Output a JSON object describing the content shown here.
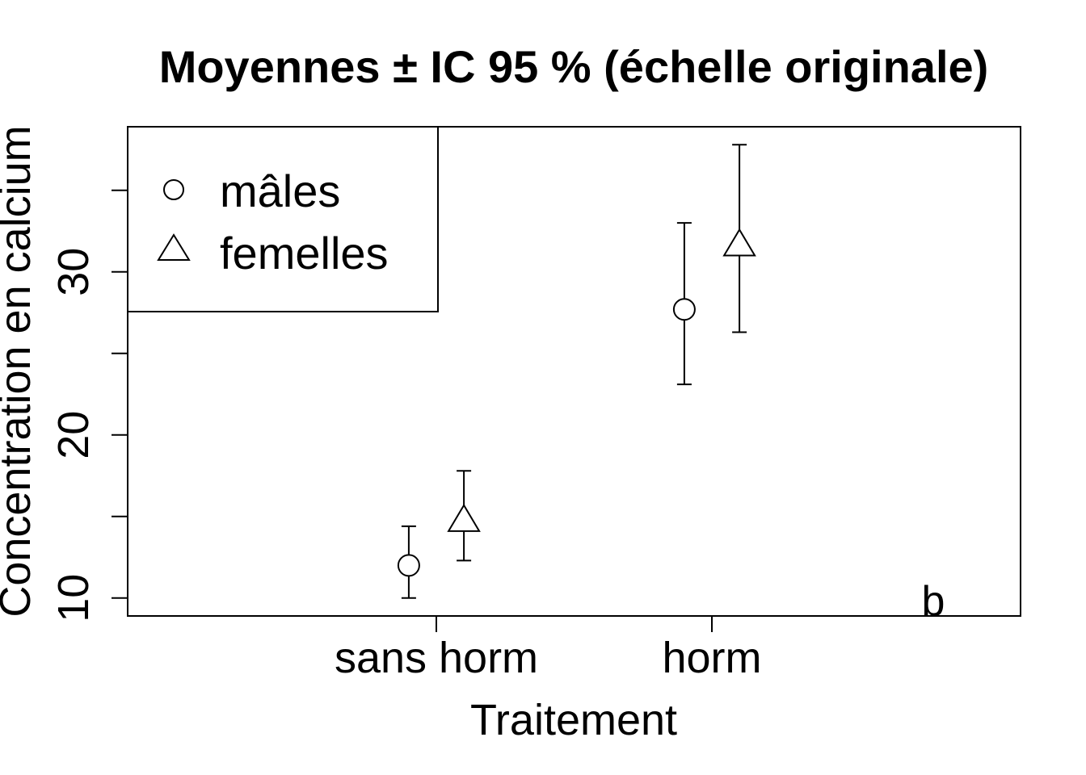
{
  "chart_data": {
    "type": "scatter",
    "title": "Moyennes ± IC 95 % (échelle originale)",
    "xlabel": "Traitement",
    "ylabel": "Concentration en calcium",
    "categories": [
      "sans horm",
      "horm"
    ],
    "ylim": [
      8.9,
      38.9
    ],
    "yticks": [
      "10",
      "20",
      "30"
    ],
    "grid": false,
    "legend_position": "top-left",
    "annotation": "b",
    "series": [
      {
        "name": "mâles",
        "marker": "circle",
        "offset": -0.1,
        "means": [
          12.0,
          27.7
        ],
        "ci_lower": [
          10.0,
          23.1
        ],
        "ci_upper": [
          14.4,
          33.0
        ]
      },
      {
        "name": "femelles",
        "marker": "triangle",
        "offset": 0.1,
        "means": [
          14.7,
          31.6
        ],
        "ci_lower": [
          12.3,
          26.3
        ],
        "ci_upper": [
          17.8,
          37.8
        ]
      }
    ]
  }
}
